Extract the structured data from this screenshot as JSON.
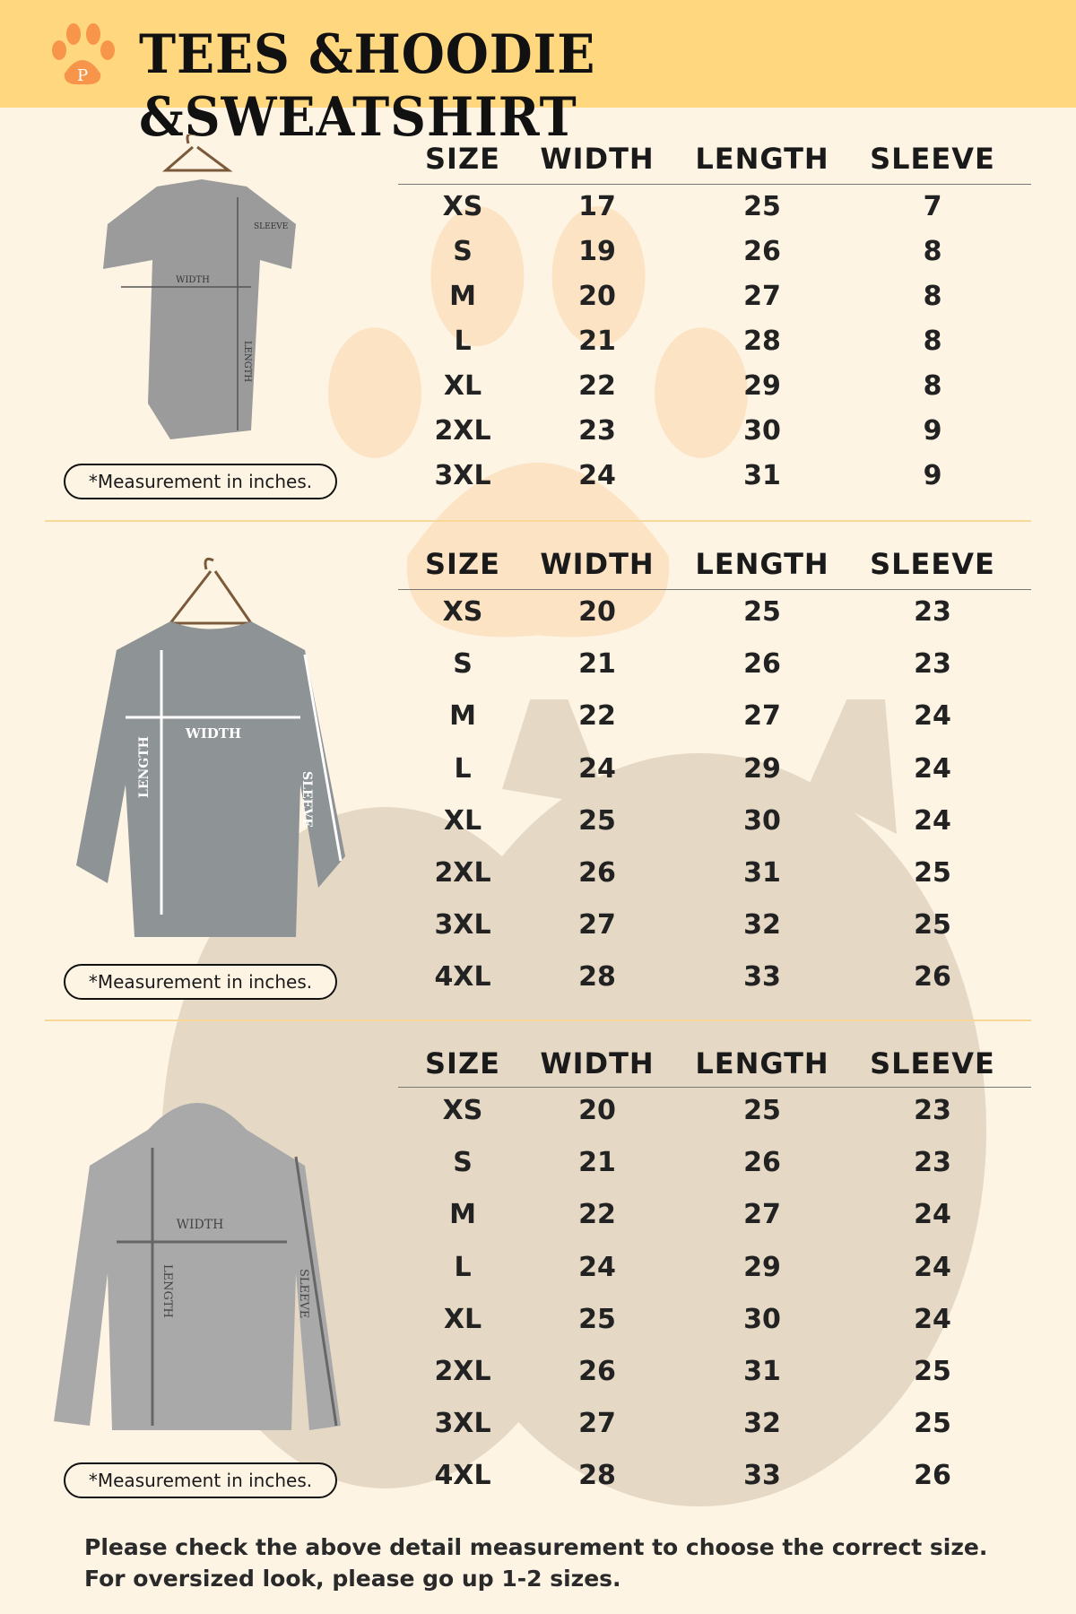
{
  "header": {
    "title": "TEES &HOODIE &SWEATSHIRT",
    "logo_text": "P",
    "bg_color": "#ffd77e",
    "logo_color": "#f7954a"
  },
  "columns": [
    "SIZE",
    "WIDTH",
    "LENGTH",
    "SLEEVE"
  ],
  "measurement_note": "*Measurement in inches.",
  "tees": {
    "image_labels": {
      "width": "WIDTH",
      "length": "LENGTH",
      "sleeve": "SLEEVE"
    },
    "rows": [
      [
        "XS",
        "17",
        "25",
        "7"
      ],
      [
        "S",
        "19",
        "26",
        "8"
      ],
      [
        "M",
        "20",
        "27",
        "8"
      ],
      [
        "L",
        "21",
        "28",
        "8"
      ],
      [
        "XL",
        "22",
        "29",
        "8"
      ],
      [
        "2XL",
        "23",
        "30",
        "9"
      ],
      [
        "3XL",
        "24",
        "31",
        "9"
      ]
    ]
  },
  "sweatshirt": {
    "image_labels": {
      "width": "WIDTH",
      "length": "LENGTH",
      "sleeve": "SLEEVE"
    },
    "rows": [
      [
        "XS",
        "20",
        "25",
        "23"
      ],
      [
        "S",
        "21",
        "26",
        "23"
      ],
      [
        "M",
        "22",
        "27",
        "24"
      ],
      [
        "L",
        "24",
        "29",
        "24"
      ],
      [
        "XL",
        "25",
        "30",
        "24"
      ],
      [
        "2XL",
        "26",
        "31",
        "25"
      ],
      [
        "3XL",
        "27",
        "32",
        "25"
      ],
      [
        "4XL",
        "28",
        "33",
        "26"
      ]
    ]
  },
  "hoodie": {
    "image_labels": {
      "width": "WIDTH",
      "length": "LENGTH",
      "sleeve": "SLEEVE"
    },
    "rows": [
      [
        "XS",
        "20",
        "25",
        "23"
      ],
      [
        "S",
        "21",
        "26",
        "23"
      ],
      [
        "M",
        "22",
        "27",
        "24"
      ],
      [
        "L",
        "24",
        "29",
        "24"
      ],
      [
        "XL",
        "25",
        "30",
        "24"
      ],
      [
        "2XL",
        "26",
        "31",
        "25"
      ],
      [
        "3XL",
        "27",
        "32",
        "25"
      ],
      [
        "4XL",
        "28",
        "33",
        "26"
      ]
    ]
  },
  "footer": {
    "line1": "Please check the above detail measurement to choose the correct size.",
    "line2": "For oversized look, please go up 1-2 sizes."
  }
}
